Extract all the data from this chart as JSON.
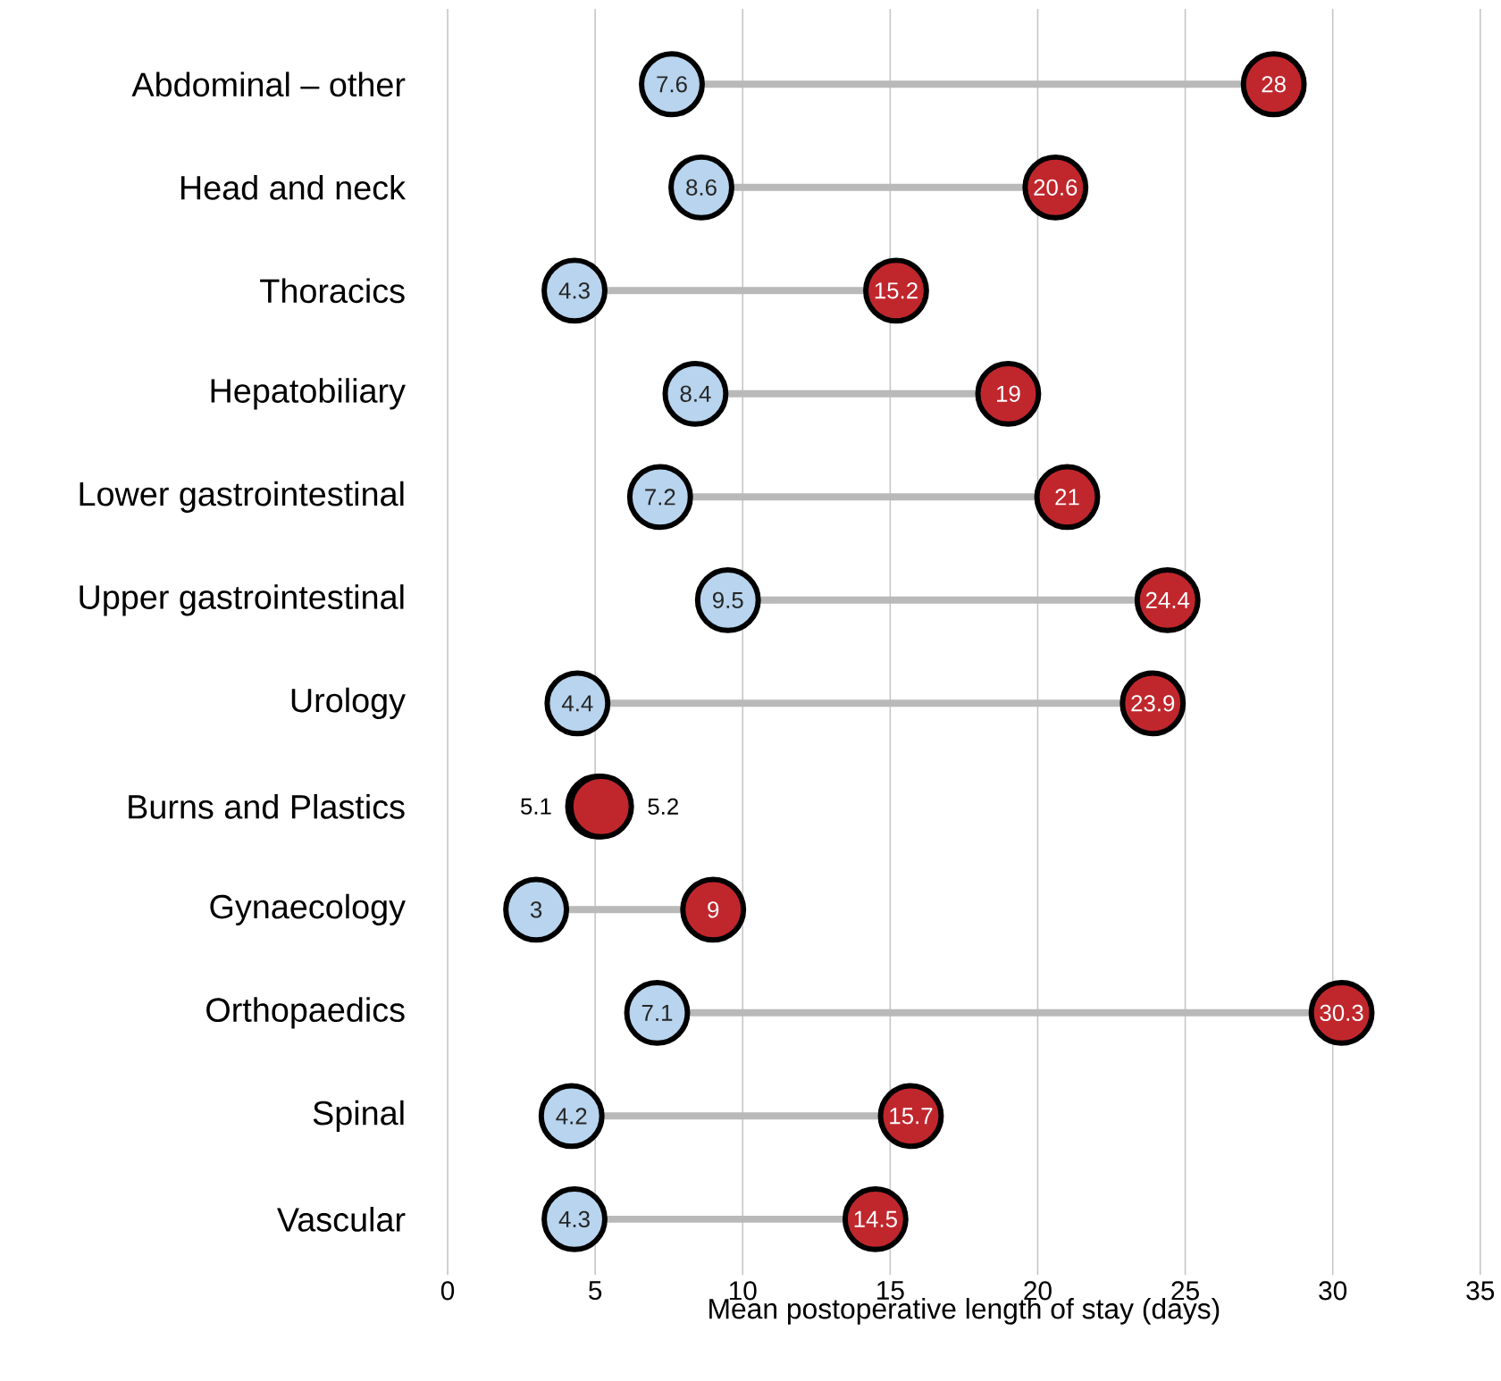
{
  "chart_data": {
    "type": "scatter",
    "orientation": "horizontal",
    "xlabel": "Mean postoperative length of stay (days)",
    "categories": [
      "Abdominal – other",
      "Head and neck",
      "Thoracics",
      "Hepatobiliary",
      "Lower gastrointestinal",
      "Upper gastrointestinal",
      "Urology",
      "Burns and Plastics",
      "Gynaecology",
      "Orthopaedics",
      "Spinal",
      "Vascular"
    ],
    "series": [
      {
        "color": "#b8d4ee",
        "values": [
          7.6,
          8.6,
          4.3,
          8.4,
          7.2,
          9.5,
          4.4,
          5.1,
          3,
          7.1,
          4.2,
          4.3
        ]
      },
      {
        "color": "#c0272d",
        "values": [
          28,
          20.6,
          15.2,
          19,
          21,
          24.4,
          23.9,
          5.2,
          9,
          30.3,
          15.7,
          14.5
        ]
      }
    ],
    "xlim": [
      0,
      35
    ],
    "xticks": [
      0,
      5,
      10,
      15,
      20,
      25,
      30,
      35
    ],
    "grid": "x",
    "marker": "circle",
    "data_labels": true
  }
}
